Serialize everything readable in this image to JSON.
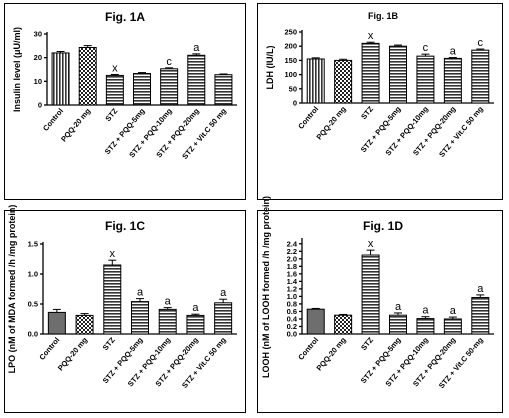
{
  "chart_data": [
    {
      "id": "a",
      "type": "bar",
      "title": "Fig. 1A",
      "ylabel": "Insulin level (μU/ml)",
      "ylim": [
        0,
        30
      ],
      "yticks": [
        0,
        10,
        20,
        30
      ],
      "categories": [
        "Control",
        "PQQ-20 mg",
        "STZ",
        "STZ + PQQ-5mg",
        "STZ + PQQ-10mg",
        "STZ + PQQ-20mg",
        "STZ + Vit.C 50 mg"
      ],
      "values": [
        22,
        24.3,
        12.5,
        13.3,
        15.3,
        21,
        12.8
      ],
      "errors": [
        0.6,
        0.8,
        0.4,
        0.4,
        0.4,
        0.6,
        0.3
      ],
      "patterns": [
        "vstripe",
        "check",
        "hstripe",
        "hstripe",
        "hstripe",
        "hstripe",
        "hstripe"
      ],
      "annotations": [
        "",
        "",
        "x",
        "",
        "c",
        "a",
        ""
      ]
    },
    {
      "id": "b",
      "type": "bar",
      "title": "Fig. 1B",
      "ylabel": "LDH (IU/L)",
      "ylim": [
        0,
        250
      ],
      "yticks": [
        0,
        50,
        100,
        150,
        200,
        250
      ],
      "categories": [
        "Control",
        "PQQ-20 mg",
        "STZ",
        "STZ + PQQ-5mg",
        "STZ + PQQ-10mg",
        "STZ + PQQ-20mg",
        "STZ + Vit.C 50 mg"
      ],
      "values": [
        155,
        150,
        210,
        200,
        165,
        157,
        186
      ],
      "errors": [
        4,
        4,
        4,
        4,
        7,
        3,
        4
      ],
      "patterns": [
        "vstripe",
        "check",
        "hstripe",
        "hstripe",
        "hstripe",
        "hstripe",
        "hstripe"
      ],
      "annotations": [
        "",
        "",
        "x",
        "",
        "c",
        "a",
        "c"
      ]
    },
    {
      "id": "c",
      "type": "bar",
      "title": "Fig. 1C",
      "ylabel": "LPO (nM of MDA formed /h /mg protein)",
      "ylim": [
        0,
        1.5
      ],
      "yticks": [
        0,
        0.5,
        1.0,
        1.5
      ],
      "yticklabels": [
        "0.0",
        "0.5",
        "1.0",
        "1.5"
      ],
      "categories": [
        "Control",
        "PQQ-20 mg",
        "STZ",
        "STZ + PQQ-5mg",
        "STZ + PQQ-10mg",
        "STZ + PQQ-20mg",
        "STZ + Vit.C 50 mg"
      ],
      "values": [
        0.36,
        0.31,
        1.15,
        0.54,
        0.41,
        0.31,
        0.52
      ],
      "errors": [
        0.05,
        0.03,
        0.08,
        0.05,
        0.03,
        0.02,
        0.06
      ],
      "patterns": [
        "solid",
        "check",
        "hstripe",
        "hstripe",
        "hstripe",
        "hstripe",
        "hstripe"
      ],
      "annotations": [
        "",
        "",
        "x",
        "a",
        "a",
        "a",
        "a"
      ]
    },
    {
      "id": "d",
      "type": "bar",
      "title": "Fig. 1D",
      "ylabel": "LOOH (nM of LOOH formed /h /mg protein)",
      "ylim": [
        0,
        2.5
      ],
      "yticks": [
        0,
        0.2,
        0.4,
        0.6,
        0.8,
        1.0,
        1.2,
        1.4,
        1.6,
        1.8,
        2.0,
        2.2,
        2.4
      ],
      "yticklabels": [
        "0.0",
        "0.2",
        "0.4",
        "0.6",
        "0.8",
        "1.0",
        "1.2",
        "1.4",
        "1.6",
        "1.8",
        "2.0",
        "2.2",
        "2.4"
      ],
      "categories": [
        "Control",
        "PQQ-20 mg",
        "STZ",
        "STZ + PQQ-5mg",
        "STZ + PQQ-10mg",
        "STZ + PQQ-20mg",
        "STZ + Vit.C 50-mg"
      ],
      "values": [
        0.66,
        0.5,
        2.1,
        0.5,
        0.41,
        0.4,
        0.97
      ],
      "errors": [
        0.02,
        0.02,
        0.13,
        0.06,
        0.05,
        0.05,
        0.07
      ],
      "patterns": [
        "solid",
        "check",
        "hstripe",
        "hstripe",
        "hstripe",
        "hstripe",
        "hstripe"
      ],
      "annotations": [
        "",
        "",
        "x",
        "a",
        "a",
        "a",
        "a"
      ]
    }
  ]
}
